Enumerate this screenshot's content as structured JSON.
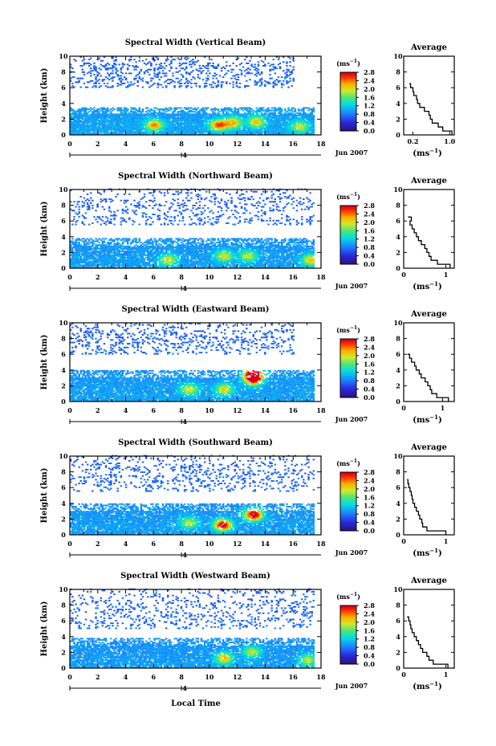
{
  "figure": {
    "xlabel": "Local Time",
    "date_label": "Jun 2007",
    "day_label": "4",
    "ylabel": "Height (km)",
    "cbar_unit": "(ms",
    "cbar_unit_exp": "−1",
    "cbar_unit_close": ")",
    "avg_title": "Average",
    "avg_unit": "(ms",
    "avg_unit_exp": "−1",
    "avg_unit_close": ")"
  },
  "chart_data": [
    {
      "type": "heatmap",
      "title": "Spectral Width (Vertical Beam)",
      "xlabel": "Local Time",
      "ylabel": "Height (km)",
      "xticks": [
        "0",
        "2",
        "4",
        "6",
        "8",
        "10",
        "12",
        "14",
        "16",
        "18"
      ],
      "xlim": [
        0,
        18
      ],
      "yticks": [
        "0",
        "2",
        "4",
        "6",
        "8",
        "10"
      ],
      "ylim": [
        0,
        10
      ],
      "colorbar": {
        "ticks": [
          "0.0",
          "0.4",
          "0.8",
          "1.2",
          "1.6",
          "2.0",
          "2.4",
          "2.8"
        ],
        "range": [
          0,
          2.8
        ]
      },
      "layers": [
        {
          "h0": 0,
          "h1": 3.5,
          "t0": 0,
          "t1": 17.4,
          "density": 0.95,
          "base": 0.65,
          "hot": [
            [
              6,
              1.2,
              1.4
            ],
            [
              10.6,
              1.2,
              1.6
            ],
            [
              11.6,
              1.5,
              1.3
            ],
            [
              13.3,
              1.6,
              1.2
            ],
            [
              16.4,
              1,
              1.0
            ]
          ]
        },
        {
          "h0": 6,
          "h1": 10,
          "t0": 0,
          "t1": 16,
          "density": 0.22,
          "base": 0.3,
          "hot": []
        }
      ],
      "average": {
        "xlim": [
          0,
          1.1
        ],
        "xticks": [
          "0.2",
          "1.0"
        ],
        "xtick_vals": [
          0.2,
          1.0
        ],
        "yticks": [
          "0",
          "2",
          "4",
          "6",
          "8",
          "10"
        ],
        "profile": [
          [
            0,
            1.05
          ],
          [
            0.5,
            0.85
          ],
          [
            1,
            0.75
          ],
          [
            1.5,
            0.62
          ],
          [
            2,
            0.58
          ],
          [
            2.5,
            0.55
          ],
          [
            3,
            0.45
          ],
          [
            3.5,
            0.35
          ],
          [
            4,
            0.3
          ],
          [
            4.5,
            0.28
          ],
          [
            5,
            0.22
          ],
          [
            5.5,
            0.2
          ],
          [
            6,
            0.15
          ],
          [
            6.5,
            0.12
          ]
        ]
      }
    },
    {
      "type": "heatmap",
      "title": "Spectral Width (Northward Beam)",
      "xlabel": "Local Time",
      "ylabel": "Height (km)",
      "xticks": [
        "0",
        "2",
        "4",
        "6",
        "8",
        "10",
        "12",
        "14",
        "16",
        "18"
      ],
      "xlim": [
        0,
        18
      ],
      "yticks": [
        "0",
        "2",
        "4",
        "6",
        "8",
        "10"
      ],
      "ylim": [
        0,
        10
      ],
      "colorbar": {
        "ticks": [
          "0.0",
          "0.4",
          "0.8",
          "1.2",
          "1.6",
          "2.0",
          "2.4",
          "2.8"
        ],
        "range": [
          0,
          2.8
        ]
      },
      "layers": [
        {
          "h0": 0,
          "h1": 3.8,
          "t0": 0,
          "t1": 17.4,
          "density": 0.9,
          "base": 0.6,
          "hot": [
            [
              7,
              1,
              1.1
            ],
            [
              11,
              1.5,
              1.1
            ],
            [
              12.7,
              1.5,
              1.0
            ],
            [
              17.2,
              1,
              1.2
            ]
          ]
        },
        {
          "h0": 5.5,
          "h1": 10,
          "t0": 0,
          "t1": 17.4,
          "density": 0.16,
          "base": 0.3,
          "hot": []
        }
      ],
      "average": {
        "xlim": [
          0,
          1.2
        ],
        "xticks": [
          "0",
          "1"
        ],
        "xtick_vals": [
          0,
          1
        ],
        "yticks": [
          "0",
          "2",
          "4",
          "6",
          "8",
          "10"
        ],
        "profile": [
          [
            0,
            1.1
          ],
          [
            0.5,
            0.8
          ],
          [
            1,
            0.65
          ],
          [
            1.5,
            0.6
          ],
          [
            2,
            0.55
          ],
          [
            2.5,
            0.5
          ],
          [
            3,
            0.42
          ],
          [
            3.5,
            0.35
          ],
          [
            4,
            0.3
          ],
          [
            4.5,
            0.25
          ],
          [
            5,
            0.2
          ],
          [
            5.5,
            0.15
          ],
          [
            6,
            0.18
          ],
          [
            6.5,
            0.1
          ]
        ]
      }
    },
    {
      "type": "heatmap",
      "title": "Spectral Width (Eastward Beam)",
      "xlabel": "Local Time",
      "ylabel": "Height (km)",
      "xticks": [
        "0",
        "2",
        "4",
        "6",
        "8",
        "10",
        "12",
        "14",
        "16",
        "18"
      ],
      "xlim": [
        0,
        18
      ],
      "yticks": [
        "0",
        "2",
        "4",
        "6",
        "8",
        "10"
      ],
      "ylim": [
        0,
        10
      ],
      "colorbar": {
        "ticks": [
          "0.0",
          "0.4",
          "0.8",
          "1.2",
          "1.6",
          "2.0",
          "2.4",
          "2.8"
        ],
        "range": [
          0,
          2.8
        ]
      },
      "layers": [
        {
          "h0": 0,
          "h1": 4.0,
          "t0": 0,
          "t1": 17.4,
          "density": 0.92,
          "base": 0.62,
          "hot": [
            [
              8.5,
              1.5,
              1.1
            ],
            [
              11,
              1.5,
              1.2
            ],
            [
              13.1,
              2.8,
              2.2
            ],
            [
              13.1,
              3.5,
              2.4
            ]
          ]
        },
        {
          "h0": 6,
          "h1": 10,
          "t0": 0,
          "t1": 16,
          "density": 0.2,
          "base": 0.3,
          "hot": []
        }
      ],
      "average": {
        "xlim": [
          0,
          1.3
        ],
        "xticks": [
          "0",
          "1"
        ],
        "xtick_vals": [
          0,
          1
        ],
        "yticks": [
          "0",
          "2",
          "4",
          "6",
          "8",
          "10"
        ],
        "profile": [
          [
            0,
            1.15
          ],
          [
            0.5,
            0.85
          ],
          [
            1,
            0.72
          ],
          [
            1.5,
            0.68
          ],
          [
            2,
            0.62
          ],
          [
            2.5,
            0.55
          ],
          [
            3,
            0.45
          ],
          [
            3.5,
            0.4
          ],
          [
            4,
            0.32
          ],
          [
            4.5,
            0.28
          ],
          [
            5,
            0.2
          ],
          [
            5.5,
            0.15
          ],
          [
            6,
            0.1
          ]
        ]
      }
    },
    {
      "type": "heatmap",
      "title": "Spectral Width (Southward Beam)",
      "xlabel": "Local Time",
      "ylabel": "Height (km)",
      "xticks": [
        "0",
        "2",
        "4",
        "6",
        "8",
        "10",
        "12",
        "14",
        "16",
        "18"
      ],
      "xlim": [
        0,
        18
      ],
      "yticks": [
        "0",
        "2",
        "4",
        "6",
        "8",
        "10"
      ],
      "ylim": [
        0,
        10
      ],
      "colorbar": {
        "ticks": [
          "0.0",
          "0.4",
          "0.8",
          "1.2",
          "1.6",
          "2.0",
          "2.4",
          "2.8"
        ],
        "range": [
          0,
          2.8
        ]
      },
      "layers": [
        {
          "h0": 0,
          "h1": 4.0,
          "t0": 0,
          "t1": 17.4,
          "density": 0.9,
          "base": 0.6,
          "hot": [
            [
              10.9,
              1.2,
              2.1
            ],
            [
              13.1,
              2.5,
              2.3
            ],
            [
              8.5,
              1.5,
              1.0
            ]
          ]
        },
        {
          "h0": 5.5,
          "h1": 10,
          "t0": 0,
          "t1": 17.4,
          "density": 0.17,
          "base": 0.3,
          "hot": []
        }
      ],
      "average": {
        "xlim": [
          0,
          1.2
        ],
        "xticks": [
          "0",
          "1"
        ],
        "xtick_vals": [
          0,
          1
        ],
        "yticks": [
          "0",
          "2",
          "4",
          "6",
          "8",
          "10"
        ],
        "profile": [
          [
            0,
            1.0
          ],
          [
            0.5,
            0.55
          ],
          [
            1,
            0.45
          ],
          [
            1.5,
            0.43
          ],
          [
            2,
            0.38
          ],
          [
            2.5,
            0.35
          ],
          [
            3,
            0.3
          ],
          [
            3.5,
            0.26
          ],
          [
            4,
            0.22
          ],
          [
            4.5,
            0.2
          ],
          [
            5,
            0.18
          ],
          [
            5.5,
            0.15
          ],
          [
            6,
            0.12
          ],
          [
            6.5,
            0.1
          ],
          [
            7,
            0.08
          ]
        ]
      }
    },
    {
      "type": "heatmap",
      "title": "Spectral Width (Westward Beam)",
      "xlabel": "Local Time",
      "ylabel": "Height (km)",
      "xticks": [
        "0",
        "2",
        "4",
        "6",
        "8",
        "10",
        "12",
        "14",
        "16",
        "18"
      ],
      "xlim": [
        0,
        18
      ],
      "yticks": [
        "0",
        "2",
        "4",
        "6",
        "8",
        "10"
      ],
      "ylim": [
        0,
        10
      ],
      "colorbar": {
        "ticks": [
          "0.0",
          "0.4",
          "0.8",
          "1.2",
          "1.6",
          "2.0",
          "2.4",
          "2.8"
        ],
        "range": [
          0,
          2.8
        ]
      },
      "layers": [
        {
          "h0": 0,
          "h1": 3.8,
          "t0": 0,
          "t1": 17.4,
          "density": 0.9,
          "base": 0.58,
          "hot": [
            [
              11,
              1.2,
              1.3
            ],
            [
              13,
              2,
              1.0
            ],
            [
              17,
              1,
              1.0
            ]
          ]
        },
        {
          "h0": 5,
          "h1": 10,
          "t0": 0,
          "t1": 17.4,
          "density": 0.15,
          "base": 0.3,
          "hot": []
        }
      ],
      "average": {
        "xlim": [
          0,
          1.2
        ],
        "xticks": [
          "0",
          "1"
        ],
        "xtick_vals": [
          0,
          1
        ],
        "yticks": [
          "0",
          "2",
          "4",
          "6",
          "8",
          "10"
        ],
        "profile": [
          [
            0,
            1.05
          ],
          [
            0.5,
            0.7
          ],
          [
            1,
            0.6
          ],
          [
            1.5,
            0.55
          ],
          [
            2,
            0.45
          ],
          [
            2.5,
            0.4
          ],
          [
            3,
            0.35
          ],
          [
            3.5,
            0.3
          ],
          [
            4,
            0.25
          ],
          [
            4.5,
            0.2
          ],
          [
            5,
            0.17
          ],
          [
            5.5,
            0.15
          ],
          [
            6,
            0.12
          ],
          [
            6.5,
            0.08
          ]
        ]
      }
    }
  ]
}
